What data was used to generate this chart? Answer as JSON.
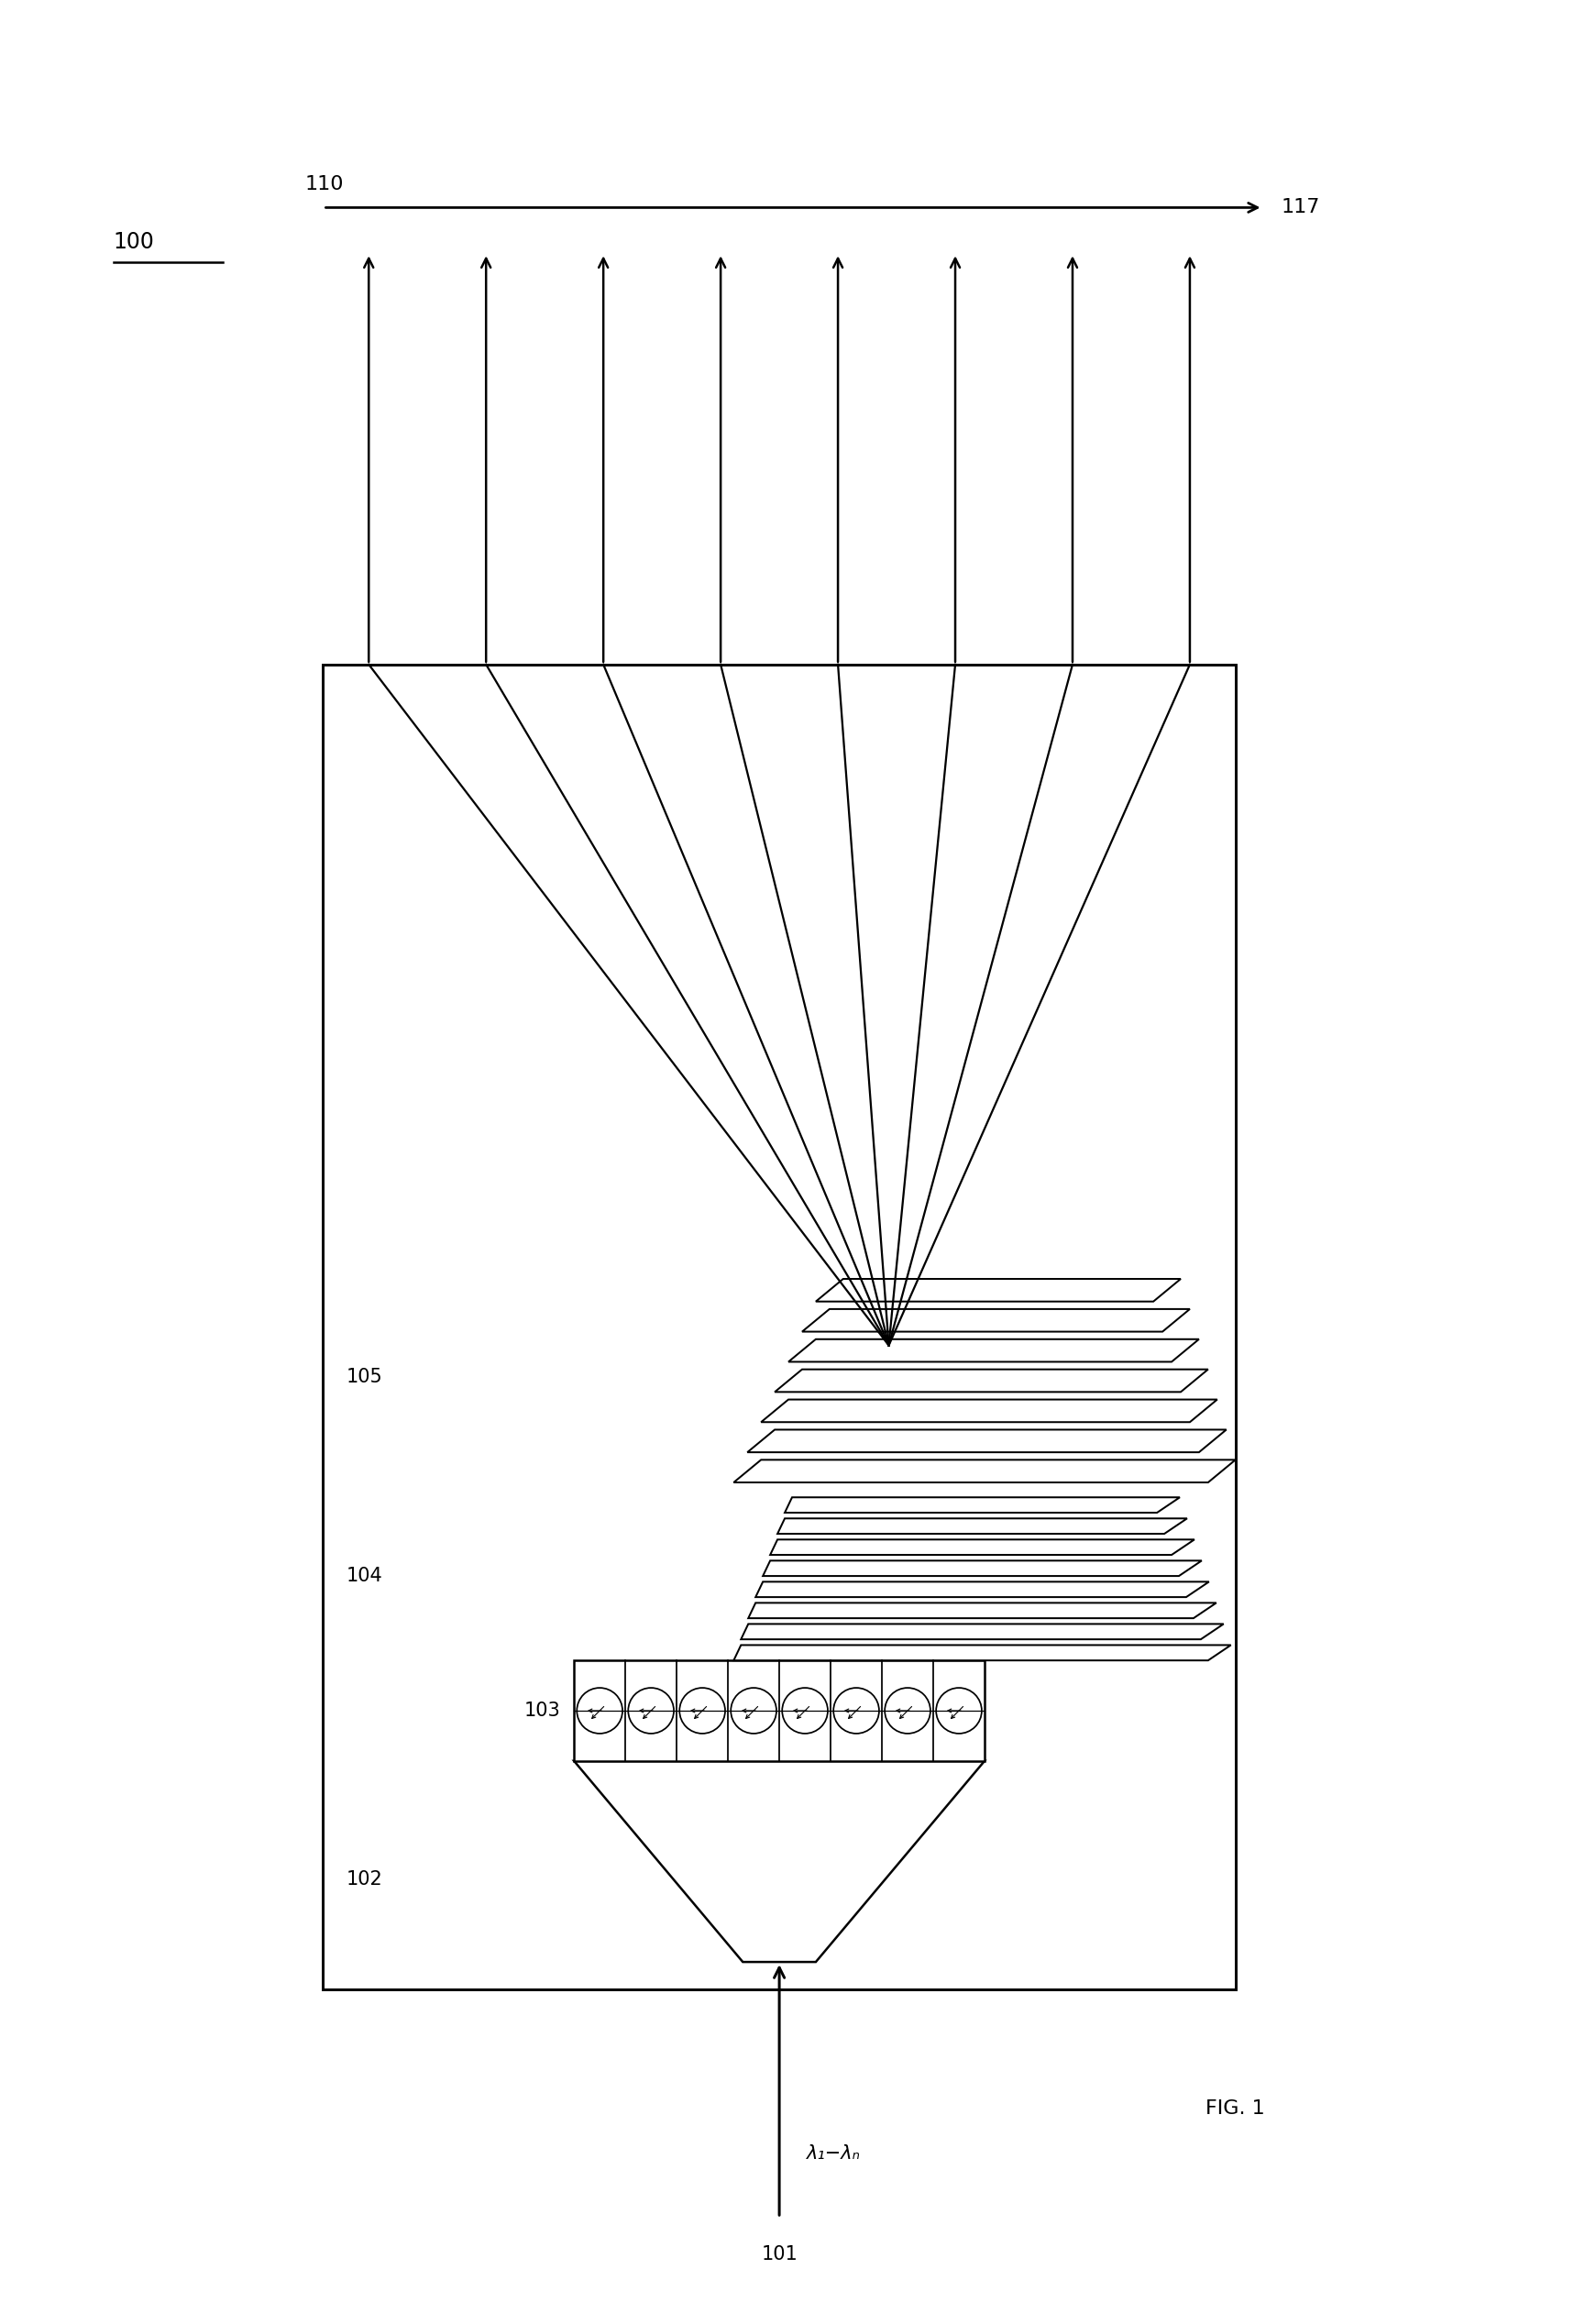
{
  "bg_color": "#ffffff",
  "line_color": "#000000",
  "fig_width": 17.41,
  "fig_height": 25.23,
  "label_100": "100",
  "label_101": "101",
  "label_102": "102",
  "label_103": "103",
  "label_104": "104",
  "label_105": "105",
  "label_110": "110",
  "label_117": "117",
  "lambda_label": "λ₁−λₙ",
  "fig_label": "FIG. 1"
}
